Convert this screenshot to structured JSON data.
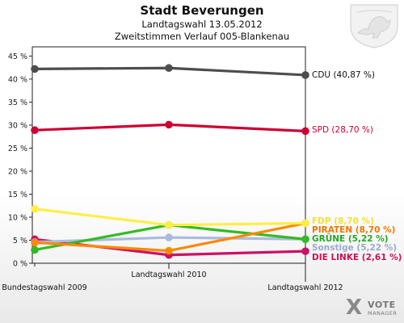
{
  "header": {
    "title": "Stadt Beverungen",
    "subtitle": "Landtagswahl 13.05.2012",
    "subtitle2": "Zweitstimmen Verlauf 005-Blankenau"
  },
  "logo": {
    "x_mark": "X",
    "word1": "VOTE",
    "word2": "MANAGER"
  },
  "chart_data": {
    "type": "line",
    "categories": [
      "Bundestagswahl 2009",
      "Landtagswahl 2010",
      "Landtagswahl 2012"
    ],
    "yticks": [
      "0 %",
      "5 %",
      "10 %",
      "15 %",
      "20 %",
      "25 %",
      "30 %",
      "35 %",
      "40 %",
      "45 %"
    ],
    "ylim": [
      0,
      47
    ],
    "grid": false,
    "series": [
      {
        "name": "CDU",
        "label": "CDU (40,87 %)",
        "color": "#4d4d4d",
        "labelColor": "#111111",
        "values": [
          42.2,
          42.4,
          40.87
        ]
      },
      {
        "name": "SPD",
        "label": "SPD (28,70 %)",
        "color": "#cc0033",
        "labelColor": "#cc0033",
        "values": [
          28.9,
          30.1,
          28.7
        ]
      },
      {
        "name": "FDP",
        "label": "FDP (8,70 %)",
        "color": "#ffee44",
        "labelColor": "#f5e030",
        "values": [
          11.8,
          8.3,
          8.7
        ]
      },
      {
        "name": "PIRATEN",
        "label": "PIRATEN (8,70 %)",
        "color": "#ff8800",
        "labelColor": "#ee7700",
        "values": [
          4.5,
          2.7,
          8.7
        ]
      },
      {
        "name": "GRÜNE",
        "label": "GRÜNE (5,22 %)",
        "color": "#33bb22",
        "labelColor": "#22aa22",
        "values": [
          2.9,
          8.3,
          5.22
        ]
      },
      {
        "name": "Sonstige",
        "label": "Sonstige (5,22 %)",
        "color": "#aabbdd",
        "labelColor": "#99aacc",
        "values": [
          4.6,
          5.6,
          5.22
        ]
      },
      {
        "name": "DIE LINKE",
        "label": "DIE LINKE (2,61 %)",
        "color": "#cc1166",
        "labelColor": "#cc1155",
        "values": [
          5.2,
          1.8,
          2.61
        ]
      }
    ]
  }
}
